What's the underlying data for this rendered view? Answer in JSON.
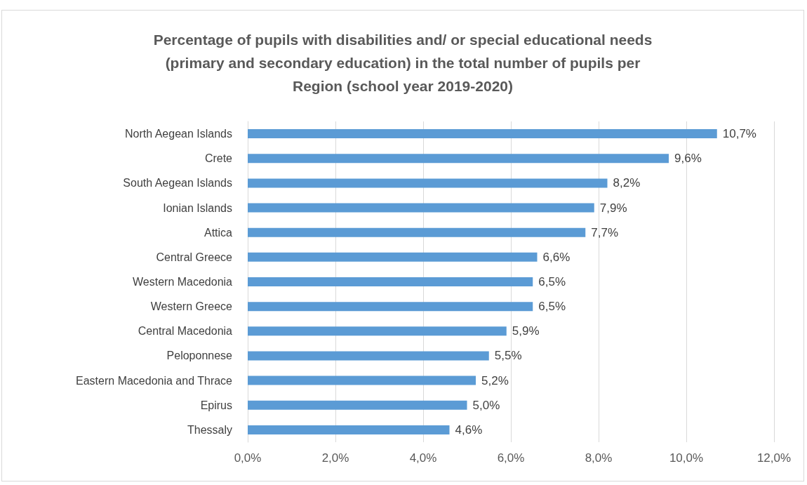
{
  "chart_data": {
    "type": "bar",
    "orientation": "horizontal",
    "title": "Percentage of pupils with disabilities and/ or special educational needs\n(primary and secondary education) in the total number of pupils per\nRegion (school year 2019-2020)",
    "categories": [
      "North Aegean Islands",
      "Crete",
      "South Aegean Islands",
      "Ionian Islands",
      "Attica",
      "Central Greece",
      "Western Macedonia",
      "Western Greece",
      "Central Macedonia",
      "Peloponnese",
      "Eastern Macedonia and Thrace",
      "Epirus",
      "Thessaly"
    ],
    "values": [
      10.7,
      9.6,
      8.2,
      7.9,
      7.7,
      6.6,
      6.5,
      6.5,
      5.9,
      5.5,
      5.2,
      5.0,
      4.6
    ],
    "value_labels": [
      "10,7%",
      "9,6%",
      "8,2%",
      "7,9%",
      "7,7%",
      "6,6%",
      "6,5%",
      "6,5%",
      "5,9%",
      "5,5%",
      "5,2%",
      "5,0%",
      "4,6%"
    ],
    "color": "#5b9bd5",
    "xlim": [
      0,
      12
    ],
    "xticks": [
      {
        "value": 0,
        "label": "0,0%"
      },
      {
        "value": 2,
        "label": "2,0%"
      },
      {
        "value": 4,
        "label": "4,0%"
      },
      {
        "value": 6,
        "label": "6,0%"
      },
      {
        "value": 8,
        "label": "8,0%"
      },
      {
        "value": 10,
        "label": "10,0%"
      },
      {
        "value": 12,
        "label": "12,0%"
      }
    ],
    "grid": "x"
  }
}
